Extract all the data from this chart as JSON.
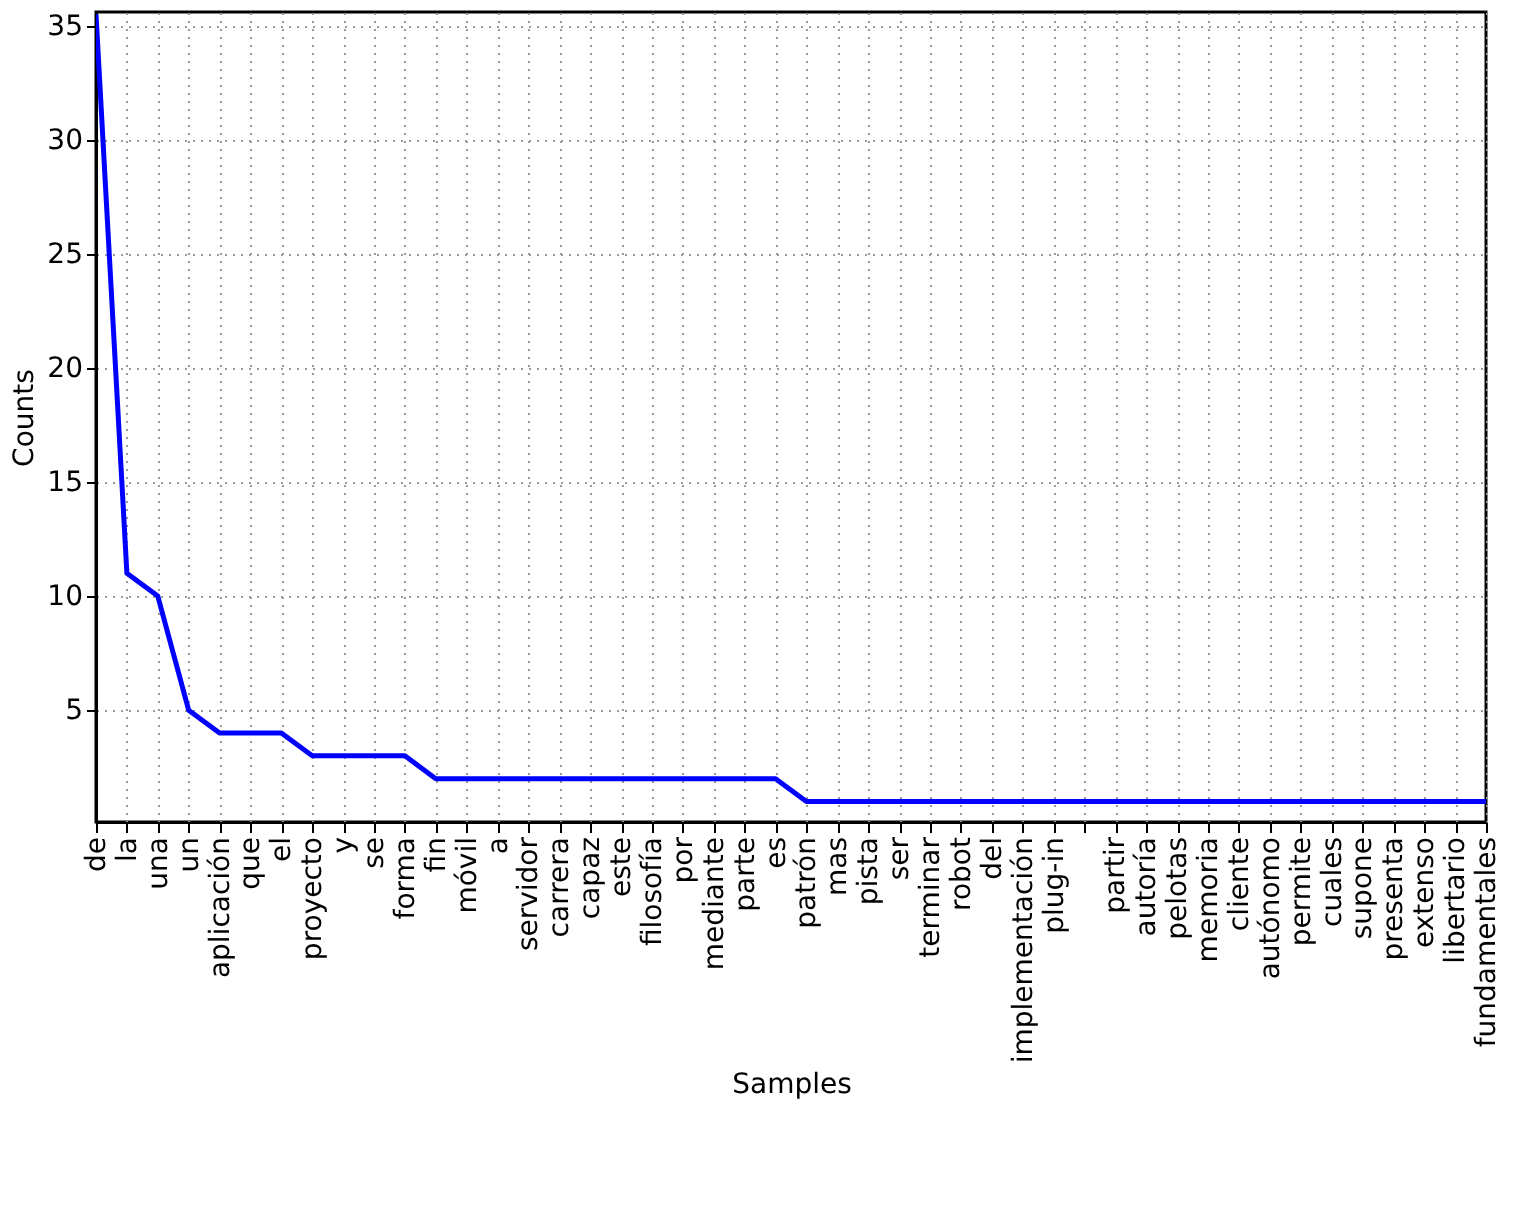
{
  "chart_data": {
    "type": "line",
    "xlabel": "Samples",
    "ylabel": "Counts",
    "categories": [
      "de",
      "la",
      "una",
      "un",
      "aplicación",
      "que",
      "el",
      "proyecto",
      "y",
      "se",
      "forma",
      "fin",
      "móvil",
      "a",
      "servidor",
      "carrera",
      "capaz",
      "este",
      "filosofía",
      "por",
      "mediante",
      "parte",
      "es",
      "patrón",
      "mas",
      "pista",
      "ser",
      "terminar",
      "robot",
      "del",
      "implementación",
      "plug-in",
      null,
      "partir",
      "autoría",
      "pelotas",
      "memoria",
      "cliente",
      "autónomo",
      "permite",
      "cuales",
      "supone",
      "presenta",
      "extenso",
      "libertario",
      "fundamentales"
    ],
    "series": [
      {
        "color": "#0000ff",
        "values": [
          35.5,
          11,
          10,
          5,
          4,
          4,
          4,
          3,
          3,
          3,
          3,
          2,
          2,
          2,
          2,
          2,
          2,
          2,
          2,
          2,
          2,
          2,
          2,
          1,
          1,
          1,
          1,
          1,
          1,
          1,
          1,
          1,
          1,
          1,
          1,
          1,
          1,
          1,
          1,
          1,
          1,
          1,
          1,
          1,
          1,
          1
        ]
      }
    ],
    "ylim": [
      0.1,
      35.6
    ],
    "yticks": [
      5,
      10,
      15,
      20,
      25,
      30,
      35
    ],
    "grid": true,
    "line_style": "solid",
    "marker": "none"
  }
}
